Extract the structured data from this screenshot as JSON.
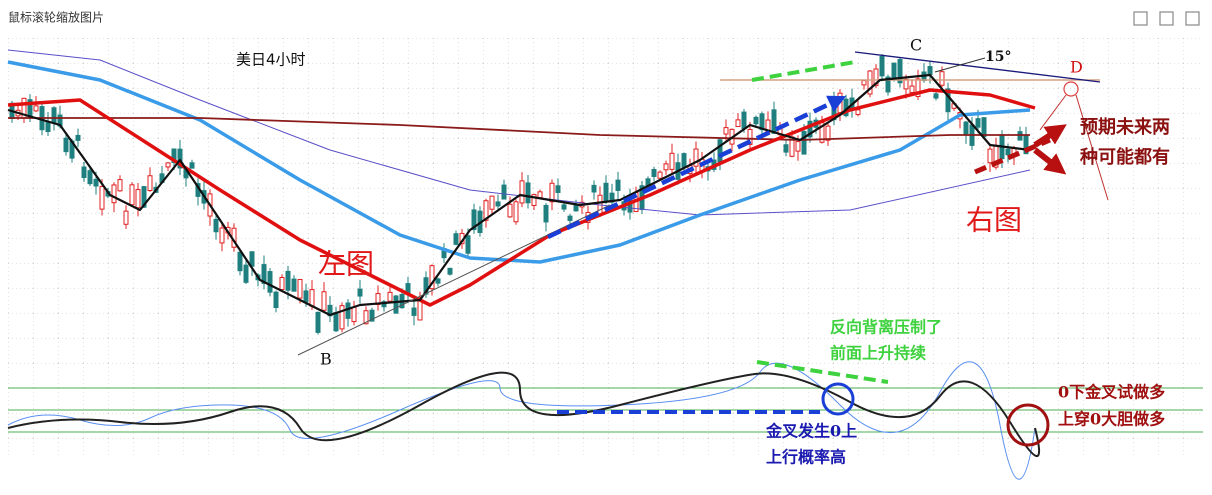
{
  "window": {
    "title": "鼠标滚轮缩放图片"
  },
  "chart": {
    "title": "美日4小时",
    "point_labels": {
      "b": "B",
      "c": "C",
      "d": "D",
      "angle": "15°"
    },
    "left_label": "左图",
    "right_label": "右图",
    "expectation": [
      "预期未来两",
      "种可能都有"
    ],
    "divergence": [
      "反向背离压制了",
      "前面上升持续"
    ],
    "golden_cross_above": [
      "金叉发生0上",
      "上行概率高"
    ],
    "golden_cross_below": [
      "0下金叉试做多",
      "上穿0大胆做多"
    ]
  }
}
